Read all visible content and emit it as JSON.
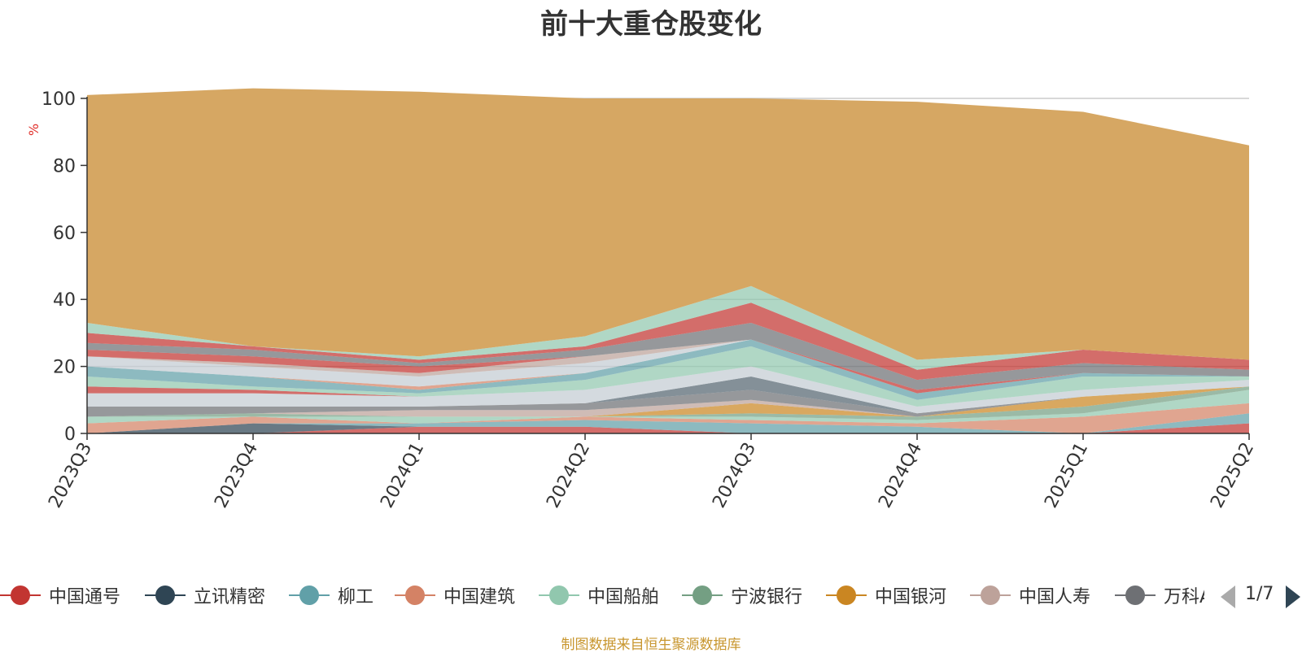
{
  "chart_data": {
    "type": "area",
    "title": "前十大重仓股变化",
    "ylabel": "%",
    "ylim": [
      0,
      100
    ],
    "yticks": [
      0,
      20,
      40,
      60,
      80,
      100
    ],
    "categories": [
      "2023Q3",
      "2023Q4",
      "2024Q1",
      "2024Q2",
      "2024Q3",
      "2024Q4",
      "2025Q1",
      "2025Q2"
    ],
    "series": [
      {
        "name": "中国通号",
        "color": "#c23531",
        "values": [
          0,
          0,
          2,
          2,
          0,
          0,
          0,
          3
        ]
      },
      {
        "name": "立讯精密",
        "color": "#2f4554",
        "values": [
          0,
          3,
          0,
          0,
          0,
          0,
          0,
          0
        ]
      },
      {
        "name": "柳工",
        "color": "#61a0a8",
        "values": [
          0,
          0,
          1,
          2,
          3,
          2,
          0,
          3
        ]
      },
      {
        "name": "中国建筑",
        "color": "#d48265",
        "values": [
          3,
          2,
          0,
          1,
          1,
          1,
          5,
          3
        ]
      },
      {
        "name": "中国船舶",
        "color": "#91c7ae",
        "values": [
          2,
          0,
          2,
          0,
          1,
          1,
          1,
          4
        ]
      },
      {
        "name": "宁波银行",
        "color": "#749f83",
        "values": [
          0,
          1,
          0,
          0,
          1,
          1,
          2,
          1
        ]
      },
      {
        "name": "中国银河",
        "color": "#ca8622",
        "values": [
          0,
          0,
          0,
          0,
          3,
          0,
          3,
          0
        ]
      },
      {
        "name": "中国人寿",
        "color": "#bda29a",
        "values": [
          0,
          0,
          2,
          2,
          1,
          0,
          0,
          0
        ]
      },
      {
        "name": "万科A",
        "color": "#6e7074",
        "values": [
          3,
          2,
          1,
          2,
          3,
          1,
          0,
          0
        ]
      },
      {
        "name": "",
        "color": "#546570",
        "values": [
          0,
          0,
          0,
          0,
          4,
          0,
          0,
          0
        ]
      },
      {
        "name": "",
        "color": "#c4ccd3",
        "values": [
          4,
          4,
          3,
          4,
          3,
          2,
          2,
          2
        ]
      },
      {
        "name": "",
        "color": "#c23531",
        "values": [
          2,
          1,
          0,
          0,
          0,
          0,
          0,
          0
        ]
      },
      {
        "name": "",
        "color": "#91c7ae",
        "values": [
          3,
          1,
          1,
          3,
          6,
          2,
          4,
          1
        ]
      },
      {
        "name": "",
        "color": "#2f4554",
        "values": [
          0,
          0,
          0,
          0,
          0,
          0,
          0,
          0
        ]
      },
      {
        "name": "",
        "color": "#61a0a8",
        "values": [
          3,
          3,
          1,
          2,
          2,
          2,
          1,
          0
        ]
      },
      {
        "name": "",
        "color": "#d48265",
        "values": [
          0,
          0,
          1,
          0,
          0,
          0,
          0,
          0
        ]
      },
      {
        "name": "",
        "color": "#c4ccd3",
        "values": [
          3,
          3,
          3,
          3,
          0,
          0,
          0,
          0
        ]
      },
      {
        "name": "",
        "color": "#bda29a",
        "values": [
          0,
          1,
          1,
          2,
          0,
          0,
          0,
          0
        ]
      },
      {
        "name": "",
        "color": "#c23531",
        "values": [
          2,
          2,
          2,
          0,
          0,
          1,
          0,
          0
        ]
      },
      {
        "name": "",
        "color": "#6e7074",
        "values": [
          2,
          2,
          1,
          2,
          5,
          3,
          3,
          2
        ]
      },
      {
        "name": "",
        "color": "#c23531",
        "values": [
          3,
          1,
          1,
          1,
          6,
          3,
          4,
          3
        ]
      },
      {
        "name": "",
        "color": "#91c7ae",
        "values": [
          3,
          0,
          1,
          3,
          5,
          3,
          0,
          0
        ]
      },
      {
        "name": "",
        "color": "#d6a763",
        "values": [
          68,
          77,
          79,
          71,
          56,
          77,
          71,
          64
        ]
      }
    ],
    "grid": true,
    "legend_position": "bottom"
  },
  "legend": {
    "page_indicator": "1/7"
  },
  "source_note": "制图数据来自恒生聚源数据库"
}
